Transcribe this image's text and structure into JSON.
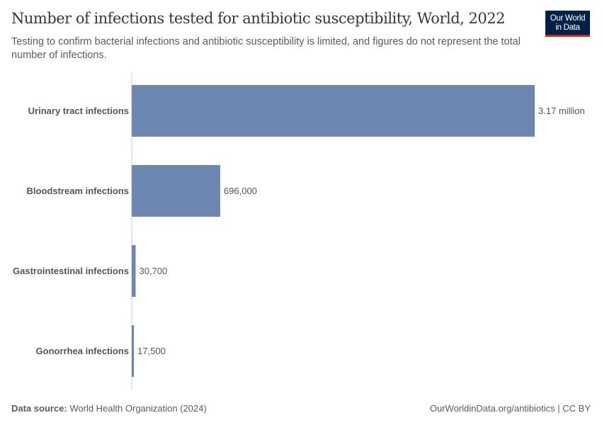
{
  "header": {
    "title": "Number of infections tested for antibiotic susceptibility, World, 2022",
    "subtitle": "Testing to confirm bacterial infections and antibiotic susceptibility is limited, and figures do not represent the total number of infections.",
    "logo": "Our World in Data"
  },
  "footer": {
    "source_label": "Data source:",
    "source": " World Health Organization (2024)",
    "license": "OurWorldinData.org/antibiotics | CC BY"
  },
  "chart_data": {
    "type": "bar",
    "orientation": "horizontal",
    "bar_color": "#6d87b0",
    "categories": [
      "Urinary tract infections",
      "Bloodstream infections",
      "Gastrointestinal infections",
      "Gonorrhea infections"
    ],
    "values": [
      3170000,
      696000,
      30700,
      17500
    ],
    "labels": [
      "3.17 million",
      "696,000",
      "30,700",
      "17,500"
    ]
  }
}
